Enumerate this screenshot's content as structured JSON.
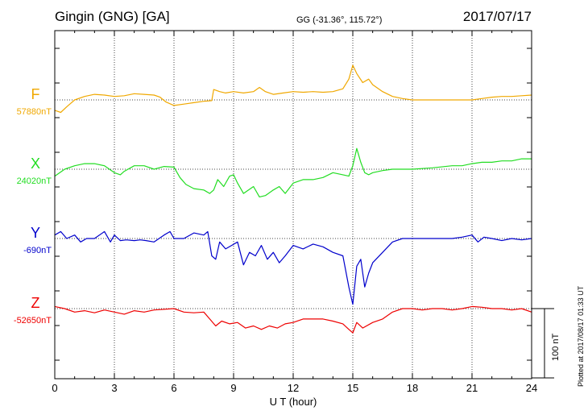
{
  "header": {
    "station": "Gingin (GNG)  [GA]",
    "coords": "GG (-31.36°, 115.72°)",
    "date": "2017/07/17"
  },
  "plotted_note": "Plotted at 2017/08/17 01:33 UT",
  "chart_data": {
    "type": "line",
    "xlabel": "U T (hour)",
    "xlim": [
      0,
      24
    ],
    "xticks": [
      0,
      3,
      6,
      9,
      12,
      15,
      18,
      21,
      24
    ],
    "xtick_labels": [
      "0",
      "3",
      "6",
      "9",
      "12",
      "15",
      "18",
      "21",
      "24"
    ],
    "y_unit": "nT",
    "grid": true,
    "scale_bar": {
      "value": 100,
      "label": "100 nT"
    },
    "series": [
      {
        "name": "F",
        "baseline_label": "57880nT",
        "baseline": 57880,
        "color": "#f0a800",
        "points": [
          [
            0,
            -15
          ],
          [
            0.3,
            -18
          ],
          [
            0.6,
            -10
          ],
          [
            1,
            0
          ],
          [
            1.5,
            5
          ],
          [
            2,
            8
          ],
          [
            2.5,
            7
          ],
          [
            3,
            5
          ],
          [
            3.5,
            6
          ],
          [
            4,
            9
          ],
          [
            4.5,
            8
          ],
          [
            5,
            7
          ],
          [
            5.3,
            4
          ],
          [
            5.6,
            -3
          ],
          [
            6,
            -8
          ],
          [
            6.5,
            -6
          ],
          [
            7,
            -4
          ],
          [
            7.5,
            -2
          ],
          [
            7.9,
            -1
          ],
          [
            8.0,
            15
          ],
          [
            8.3,
            12
          ],
          [
            8.6,
            10
          ],
          [
            9,
            12
          ],
          [
            9.5,
            10
          ],
          [
            10,
            12
          ],
          [
            10.3,
            18
          ],
          [
            10.6,
            12
          ],
          [
            11,
            8
          ],
          [
            11.5,
            10
          ],
          [
            12,
            12
          ],
          [
            12.5,
            11
          ],
          [
            13,
            12
          ],
          [
            13.5,
            11
          ],
          [
            14,
            12
          ],
          [
            14.5,
            16
          ],
          [
            14.8,
            30
          ],
          [
            15.0,
            50
          ],
          [
            15.2,
            38
          ],
          [
            15.5,
            25
          ],
          [
            15.8,
            30
          ],
          [
            16,
            22
          ],
          [
            16.5,
            12
          ],
          [
            17,
            5
          ],
          [
            17.5,
            2
          ],
          [
            18,
            0
          ],
          [
            19,
            0
          ],
          [
            20,
            0
          ],
          [
            21,
            0
          ],
          [
            21.5,
            2
          ],
          [
            22,
            4
          ],
          [
            22.5,
            5
          ],
          [
            23,
            5
          ],
          [
            23.5,
            6
          ],
          [
            24,
            7
          ]
        ]
      },
      {
        "name": "X",
        "baseline_label": "24020nT",
        "baseline": 24020,
        "color": "#22dd22",
        "points": [
          [
            0,
            -10
          ],
          [
            0.5,
            0
          ],
          [
            1,
            5
          ],
          [
            1.5,
            8
          ],
          [
            2,
            8
          ],
          [
            2.5,
            5
          ],
          [
            3,
            -5
          ],
          [
            3.3,
            -8
          ],
          [
            3.5,
            -3
          ],
          [
            4,
            5
          ],
          [
            4.5,
            5
          ],
          [
            5,
            0
          ],
          [
            5.5,
            4
          ],
          [
            6,
            3
          ],
          [
            6.3,
            -12
          ],
          [
            6.6,
            -22
          ],
          [
            7,
            -28
          ],
          [
            7.5,
            -30
          ],
          [
            7.8,
            -35
          ],
          [
            8,
            -30
          ],
          [
            8.2,
            -15
          ],
          [
            8.5,
            -25
          ],
          [
            8.8,
            -10
          ],
          [
            9,
            -8
          ],
          [
            9.2,
            -20
          ],
          [
            9.5,
            -35
          ],
          [
            10,
            -25
          ],
          [
            10.3,
            -40
          ],
          [
            10.6,
            -38
          ],
          [
            11,
            -30
          ],
          [
            11.3,
            -25
          ],
          [
            11.6,
            -35
          ],
          [
            12,
            -20
          ],
          [
            12.5,
            -15
          ],
          [
            13,
            -15
          ],
          [
            13.5,
            -12
          ],
          [
            14,
            -5
          ],
          [
            14.5,
            -8
          ],
          [
            14.8,
            -10
          ],
          [
            15.0,
            5
          ],
          [
            15.2,
            30
          ],
          [
            15.4,
            10
          ],
          [
            15.6,
            -5
          ],
          [
            15.8,
            -8
          ],
          [
            16,
            -5
          ],
          [
            16.5,
            -2
          ],
          [
            17,
            0
          ],
          [
            17.5,
            0
          ],
          [
            18,
            0
          ],
          [
            19,
            2
          ],
          [
            20,
            5
          ],
          [
            20.5,
            5
          ],
          [
            21,
            8
          ],
          [
            21.5,
            10
          ],
          [
            22,
            10
          ],
          [
            22.5,
            12
          ],
          [
            23,
            12
          ],
          [
            23.5,
            15
          ],
          [
            24,
            15
          ]
        ]
      },
      {
        "name": "Y",
        "baseline_label": "-690nT",
        "baseline": -690,
        "color": "#0000cc",
        "points": [
          [
            0,
            5
          ],
          [
            0.3,
            10
          ],
          [
            0.6,
            0
          ],
          [
            1,
            5
          ],
          [
            1.3,
            -5
          ],
          [
            1.6,
            0
          ],
          [
            2,
            0
          ],
          [
            2.5,
            10
          ],
          [
            2.8,
            -5
          ],
          [
            3,
            5
          ],
          [
            3.3,
            -3
          ],
          [
            3.6,
            -2
          ],
          [
            4,
            -3
          ],
          [
            4.3,
            -2
          ],
          [
            4.6,
            -3
          ],
          [
            5,
            -5
          ],
          [
            5.5,
            5
          ],
          [
            5.8,
            10
          ],
          [
            6,
            0
          ],
          [
            6.5,
            0
          ],
          [
            7,
            8
          ],
          [
            7.5,
            5
          ],
          [
            7.7,
            10
          ],
          [
            7.9,
            -25
          ],
          [
            8.1,
            -30
          ],
          [
            8.3,
            -5
          ],
          [
            8.6,
            -15
          ],
          [
            8.9,
            -10
          ],
          [
            9.2,
            -5
          ],
          [
            9.5,
            -38
          ],
          [
            9.8,
            -20
          ],
          [
            10.1,
            -25
          ],
          [
            10.4,
            -10
          ],
          [
            10.7,
            -30
          ],
          [
            11,
            -20
          ],
          [
            11.3,
            -35
          ],
          [
            11.6,
            -25
          ],
          [
            12,
            -10
          ],
          [
            12.5,
            -15
          ],
          [
            13,
            -8
          ],
          [
            13.5,
            -12
          ],
          [
            14,
            -20
          ],
          [
            14.5,
            -25
          ],
          [
            14.8,
            -70
          ],
          [
            15.0,
            -95
          ],
          [
            15.2,
            -40
          ],
          [
            15.4,
            -30
          ],
          [
            15.6,
            -70
          ],
          [
            15.8,
            -50
          ],
          [
            16,
            -35
          ],
          [
            16.5,
            -20
          ],
          [
            17,
            -5
          ],
          [
            17.5,
            0
          ],
          [
            18,
            0
          ],
          [
            18.5,
            0
          ],
          [
            19,
            0
          ],
          [
            19.5,
            0
          ],
          [
            20,
            0
          ],
          [
            20.5,
            2
          ],
          [
            21,
            5
          ],
          [
            21.3,
            -5
          ],
          [
            21.6,
            2
          ],
          [
            22,
            0
          ],
          [
            22.5,
            -3
          ],
          [
            23,
            0
          ],
          [
            23.5,
            -2
          ],
          [
            24,
            0
          ]
        ]
      },
      {
        "name": "Z",
        "baseline_label": "-52650nT",
        "baseline": -52650,
        "color": "#ee0000",
        "points": [
          [
            0,
            3
          ],
          [
            0.5,
            0
          ],
          [
            1,
            -5
          ],
          [
            1.5,
            -3
          ],
          [
            2,
            -6
          ],
          [
            2.5,
            -2
          ],
          [
            3,
            -5
          ],
          [
            3.5,
            -8
          ],
          [
            4,
            -3
          ],
          [
            4.5,
            -5
          ],
          [
            5,
            -2
          ],
          [
            6,
            0
          ],
          [
            6.5,
            -5
          ],
          [
            7,
            -6
          ],
          [
            7.5,
            -5
          ],
          [
            7.8,
            -15
          ],
          [
            8.1,
            -25
          ],
          [
            8.4,
            -18
          ],
          [
            8.8,
            -22
          ],
          [
            9.2,
            -20
          ],
          [
            9.6,
            -28
          ],
          [
            10,
            -25
          ],
          [
            10.4,
            -30
          ],
          [
            10.8,
            -25
          ],
          [
            11.2,
            -28
          ],
          [
            11.6,
            -22
          ],
          [
            12,
            -20
          ],
          [
            12.5,
            -15
          ],
          [
            13,
            -15
          ],
          [
            13.5,
            -15
          ],
          [
            14,
            -18
          ],
          [
            14.5,
            -22
          ],
          [
            14.8,
            -30
          ],
          [
            15.0,
            -35
          ],
          [
            15.2,
            -20
          ],
          [
            15.5,
            -28
          ],
          [
            16,
            -20
          ],
          [
            16.5,
            -15
          ],
          [
            17,
            -5
          ],
          [
            17.5,
            0
          ],
          [
            18,
            0
          ],
          [
            18.5,
            -2
          ],
          [
            19,
            0
          ],
          [
            19.5,
            0
          ],
          [
            20,
            -2
          ],
          [
            20.5,
            0
          ],
          [
            21,
            3
          ],
          [
            21.5,
            2
          ],
          [
            22,
            0
          ],
          [
            22.5,
            0
          ],
          [
            23,
            -2
          ],
          [
            23.5,
            0
          ],
          [
            24,
            -5
          ]
        ]
      }
    ]
  }
}
